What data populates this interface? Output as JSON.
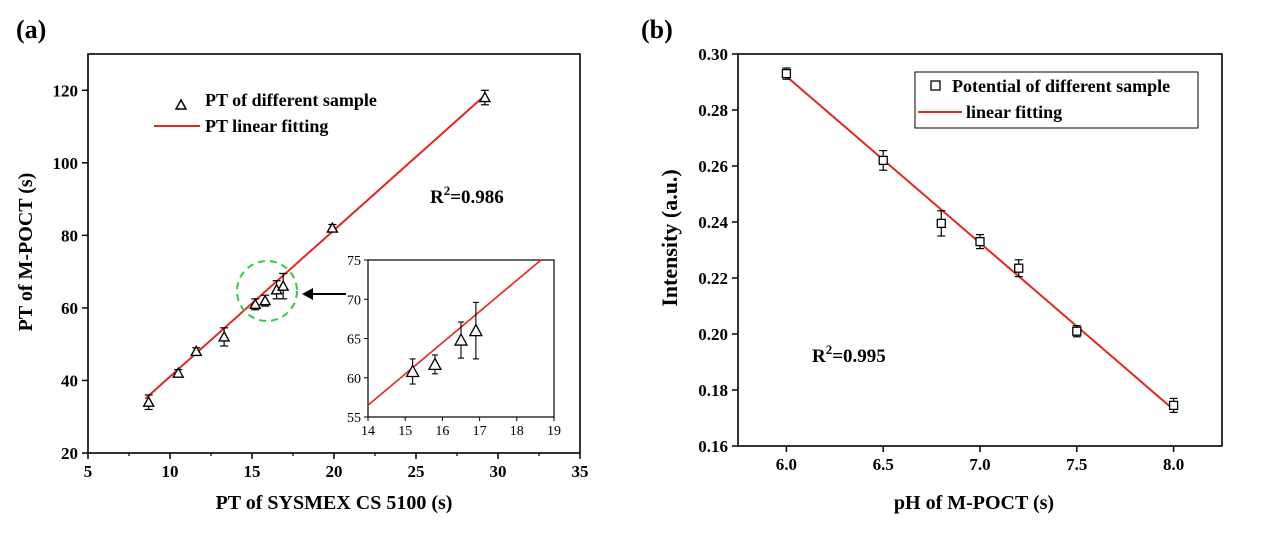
{
  "chart_data": [
    {
      "panel_label": "(a)",
      "type": "scatter",
      "xlabel": "PT of SYSMEX CS 5100 (s)",
      "ylabel": "PT of M-POCT (s)",
      "xlim": [
        5,
        35
      ],
      "ylim": [
        20,
        130
      ],
      "xticks": [
        5,
        10,
        15,
        20,
        25,
        30,
        35
      ],
      "yticks": [
        20,
        40,
        60,
        80,
        100,
        120
      ],
      "annotation": {
        "prefix": "R",
        "sup": "2",
        "suffix": "=0.986"
      },
      "legend": {
        "placement": "top-left",
        "marker_label": "PT of different sample",
        "line_label": "PT linear fitting"
      },
      "series": [
        {
          "name": "PT of different sample",
          "marker": "triangle",
          "x": [
            8.7,
            10.5,
            11.6,
            13.3,
            15.2,
            15.8,
            16.5,
            16.9,
            19.9,
            29.2
          ],
          "y": [
            34.0,
            42.0,
            48.0,
            52.0,
            61.0,
            62.0,
            65.0,
            66.0,
            82.0,
            118.0
          ],
          "err": [
            2.0,
            1.0,
            1.0,
            2.5,
            1.5,
            1.5,
            2.5,
            3.5,
            1.0,
            2.0
          ]
        },
        {
          "name": "PT linear fitting",
          "type": "line",
          "color": "#e8251f",
          "x": [
            8.5,
            29.3
          ],
          "y": [
            35.0,
            119.0
          ]
        }
      ],
      "inset": {
        "xlim": [
          14,
          19
        ],
        "ylim": [
          55,
          75
        ],
        "xticks": [
          14,
          15,
          16,
          17,
          18,
          19
        ],
        "yticks": [
          55,
          60,
          65,
          70,
          75
        ],
        "points": {
          "x": [
            15.2,
            15.8,
            16.5,
            16.9
          ],
          "y": [
            60.8,
            61.7,
            64.8,
            66.0
          ],
          "err": [
            1.6,
            1.2,
            2.3,
            3.6
          ]
        },
        "line": {
          "x": [
            14,
            18.65
          ],
          "y": [
            56.5,
            75.0
          ]
        }
      }
    },
    {
      "panel_label": "(b)",
      "type": "scatter",
      "xlabel": "pH of M-POCT (s)",
      "ylabel": "Intensity (a.u.)",
      "xlim": [
        5.75,
        8.25
      ],
      "ylim": [
        0.16,
        0.3
      ],
      "xticks": [
        6.0,
        6.5,
        7.0,
        7.5,
        8.0
      ],
      "yticks": [
        0.16,
        0.18,
        0.2,
        0.22,
        0.24,
        0.26,
        0.28,
        0.3
      ],
      "annotation": {
        "prefix": "R",
        "sup": "2",
        "suffix": "=0.995"
      },
      "legend": {
        "placement": "top-right",
        "marker_label": "Potential of different sample",
        "line_label": "linear fitting"
      },
      "series": [
        {
          "name": "Potential of different sample",
          "marker": "square",
          "x": [
            6.0,
            6.5,
            6.8,
            7.0,
            7.2,
            7.5,
            8.0
          ],
          "y": [
            0.293,
            0.262,
            0.2395,
            0.233,
            0.2235,
            0.201,
            0.1745
          ],
          "err": [
            0.002,
            0.0035,
            0.0045,
            0.0025,
            0.003,
            0.002,
            0.0025
          ]
        },
        {
          "name": "linear fitting",
          "type": "line",
          "color": "#e8251f",
          "x": [
            6.0,
            8.0
          ],
          "y": [
            0.292,
            0.173
          ]
        }
      ]
    }
  ],
  "colors": {
    "fit_line": "#e8251f",
    "highlight_circle": "#2ecc40",
    "axis": "#000000"
  }
}
